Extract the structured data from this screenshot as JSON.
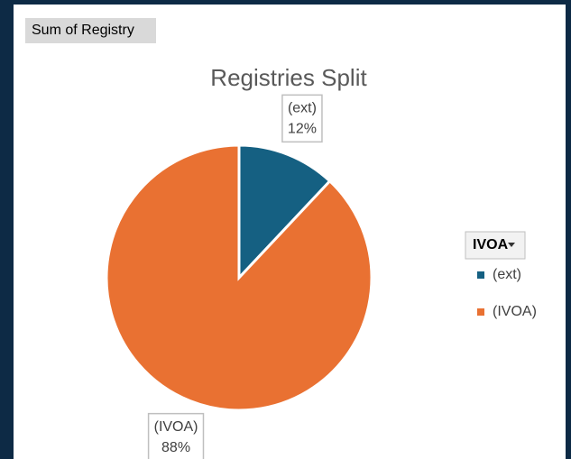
{
  "chart_data": {
    "type": "pie",
    "title": "Registries Split",
    "field_button": "Sum of Registry",
    "legend_title": "IVOA",
    "categories": [
      "(ext)",
      "(IVOA)"
    ],
    "values": [
      12,
      88
    ],
    "value_labels": [
      "12%",
      "88%"
    ],
    "colors": [
      "#156082",
      "#e97132"
    ]
  }
}
